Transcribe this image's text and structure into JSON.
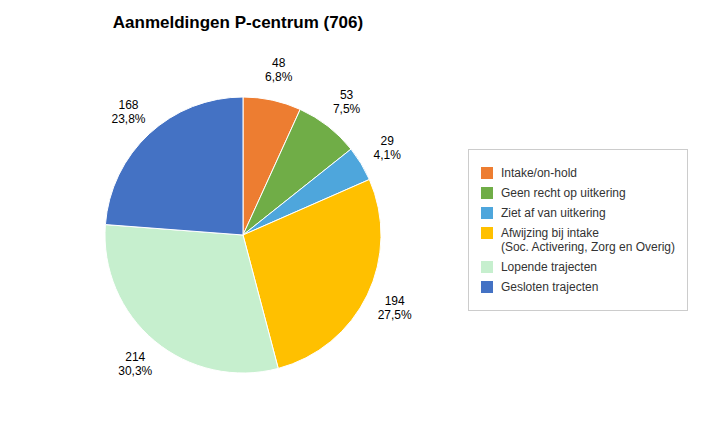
{
  "chart_data": {
    "type": "pie",
    "title": "Aanmeldingen P-centrum (706)",
    "categories": [
      "Intake/on-hold",
      "Geen recht op uitkering",
      "Ziet af van uitkering",
      "Afwijzing bij intake\n(Soc. Activering, Zorg en Overig)",
      "Lopende trajecten",
      "Gesloten trajecten"
    ],
    "values": [
      48,
      53,
      29,
      194,
      214,
      168
    ],
    "value_labels": [
      "48\n6,8%",
      "53\n7,5%",
      "29\n4,1%",
      "194\n27,5%",
      "214\n30,3%",
      "168\n23,8%"
    ],
    "colors": [
      "#ED7D31",
      "#70AD47",
      "#4EA6DC",
      "#FFC000",
      "#C6EFCE",
      "#4472C4"
    ],
    "data_labels": true,
    "legend": "right"
  }
}
